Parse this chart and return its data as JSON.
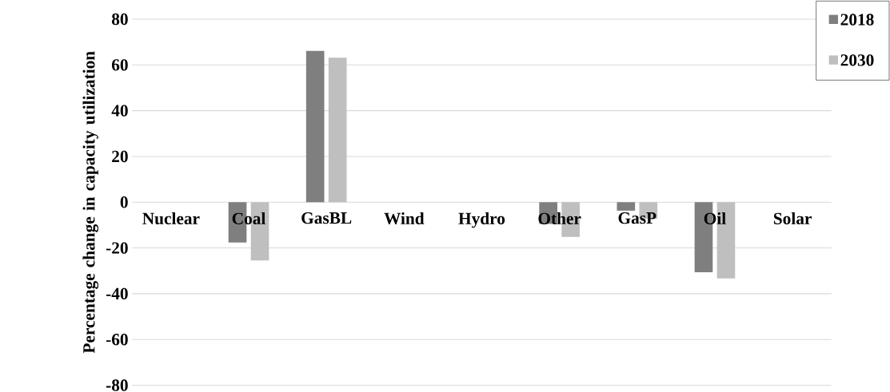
{
  "chart_data": {
    "type": "bar",
    "ylabel": "Percentage change in capacity utilization",
    "categories": [
      "Nuclear",
      "Coal",
      "GasBL",
      "Wind",
      "Hydro",
      "Other",
      "GasP",
      "Oil",
      "Solar"
    ],
    "series": [
      {
        "name": "2018",
        "color": "#7f7f7f",
        "values": [
          0,
          -17.6,
          66.1,
          0,
          0,
          -9.5,
          -3.7,
          -30.6,
          0
        ]
      },
      {
        "name": "2030",
        "color": "#bfbfbf",
        "values": [
          0,
          -25.5,
          63.2,
          0,
          0,
          -15.2,
          -7.2,
          -33.3,
          0
        ]
      }
    ],
    "ylim": [
      -80,
      80
    ],
    "yticks": [
      -80,
      -60,
      -40,
      -20,
      0,
      20,
      40,
      60,
      80
    ],
    "grid": "y",
    "legend": "top right"
  }
}
